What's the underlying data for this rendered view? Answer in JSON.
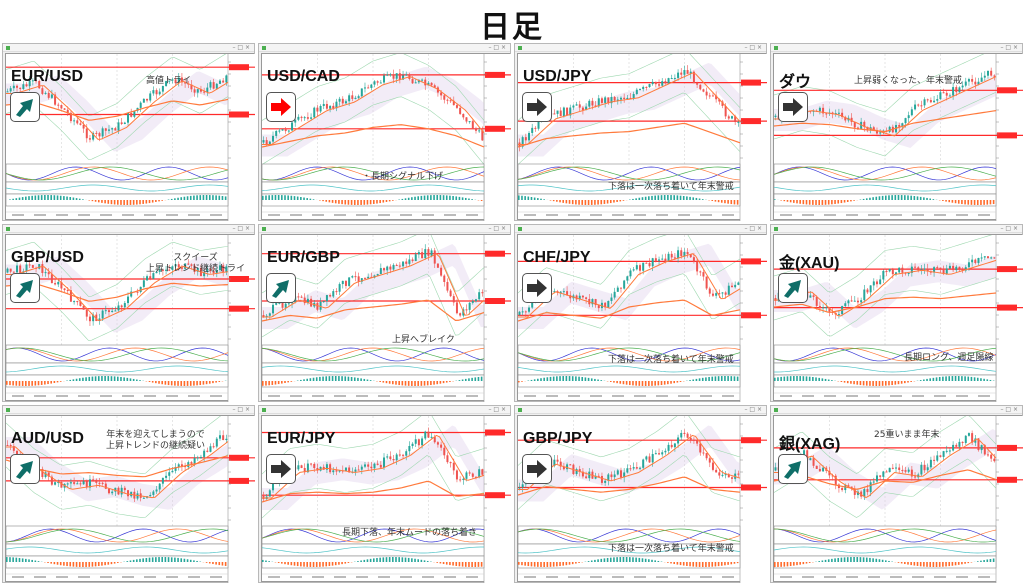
{
  "title": "日足",
  "colors": {
    "up": "#26a69a",
    "down": "#ef5350",
    "resistance": "#ff2a2a",
    "ma": "#ff7a3c",
    "arrow_up": "#0f6e68",
    "arrow_down": "#ff0000",
    "arrow_flat": "#333333"
  },
  "panels": [
    {
      "symbol": "EUR/USD",
      "arrow": "up-right",
      "note": [
        "高値トライ"
      ]
    },
    {
      "symbol": "USD/CAD",
      "arrow": "right-red",
      "note": [
        "・長期シグナル下げ"
      ]
    },
    {
      "symbol": "USD/JPY",
      "arrow": "right",
      "note": [
        "下落は一次落ち着いて年末警戒"
      ]
    },
    {
      "symbol": "ダウ",
      "arrow": "right",
      "note": [
        "上昇弱くなった、年末警戒"
      ]
    },
    {
      "symbol": "GBP/USD",
      "arrow": "up-right",
      "note": [
        "スクイーズ",
        "上昇トレンド継続トライ"
      ]
    },
    {
      "symbol": "EUR/GBP",
      "arrow": "up-right",
      "note": [
        "上昇へブレイク"
      ]
    },
    {
      "symbol": "CHF/JPY",
      "arrow": "right",
      "note": [
        "下落は一次落ち着いて年末警戒"
      ]
    },
    {
      "symbol": "金(XAU)",
      "arrow": "up-right",
      "note": [
        "長期ロング、週足陽線"
      ]
    },
    {
      "symbol": "AUD/USD",
      "arrow": "up-right",
      "note": [
        "年末を迎えてしまうので",
        "上昇トレンドの継続疑い"
      ]
    },
    {
      "symbol": "EUR/JPY",
      "arrow": "right",
      "note": [
        "長期下落、年末ムードの落ち着き"
      ]
    },
    {
      "symbol": "GBP/JPY",
      "arrow": "right",
      "note": [
        "下落は一次落ち着いて年末警戒"
      ]
    },
    {
      "symbol": "銀(XAG)",
      "arrow": "up-right",
      "note": [
        "25重いまま年末"
      ]
    }
  ]
}
